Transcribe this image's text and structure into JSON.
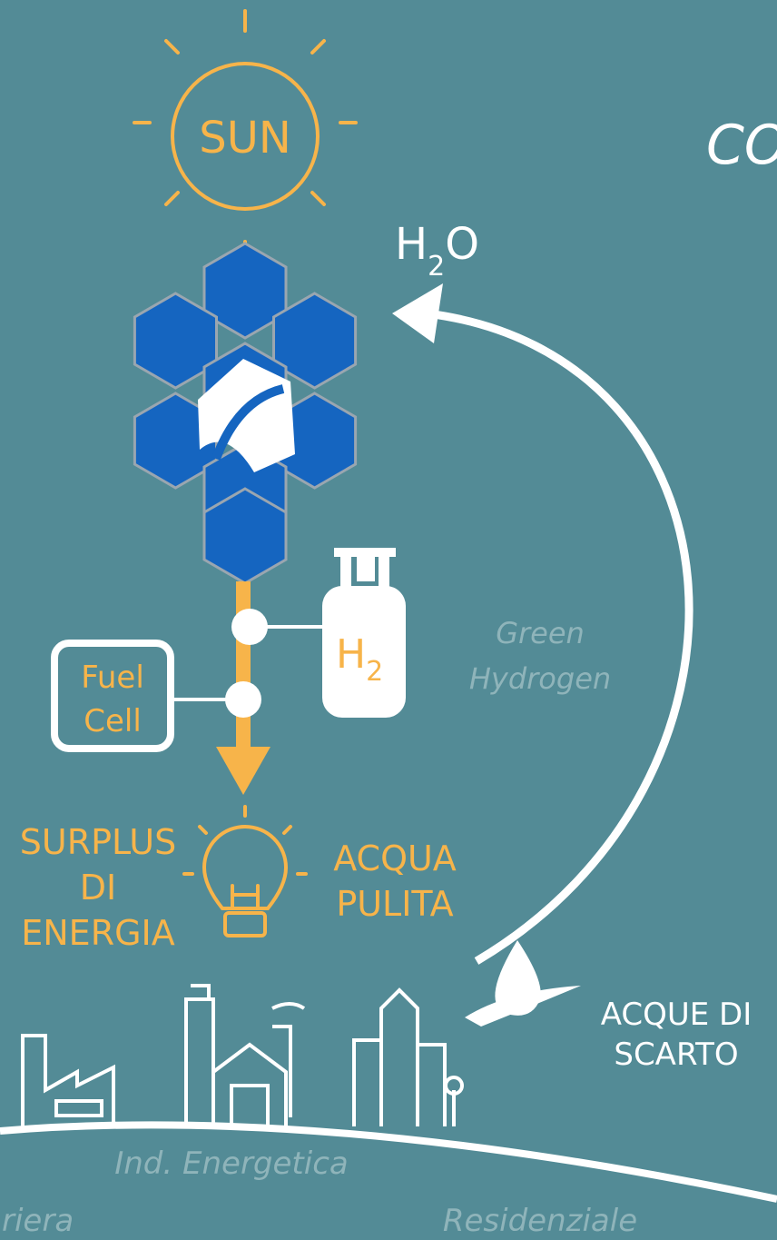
{
  "sun": {
    "label": "SUN"
  },
  "title": "CO",
  "water": {
    "base": "H",
    "sub": "2",
    "tail": "O"
  },
  "hydrogen": {
    "base": "H",
    "sub": "2"
  },
  "green_hydrogen": {
    "lines": [
      "Green",
      "Hydrogen"
    ]
  },
  "fuel_cell": {
    "lines": [
      "Fuel",
      "Cell"
    ]
  },
  "surplus": {
    "lines": [
      "SURPLUS",
      "DI",
      "ENERGIA"
    ]
  },
  "clean_water": {
    "lines": [
      "ACQUA",
      "PULITA"
    ]
  },
  "waste_water": {
    "lines": [
      "ACQUE DI",
      "SCARTO"
    ]
  },
  "sectors": [
    "Ind. Energetica",
    "riera",
    "Residenziale"
  ]
}
